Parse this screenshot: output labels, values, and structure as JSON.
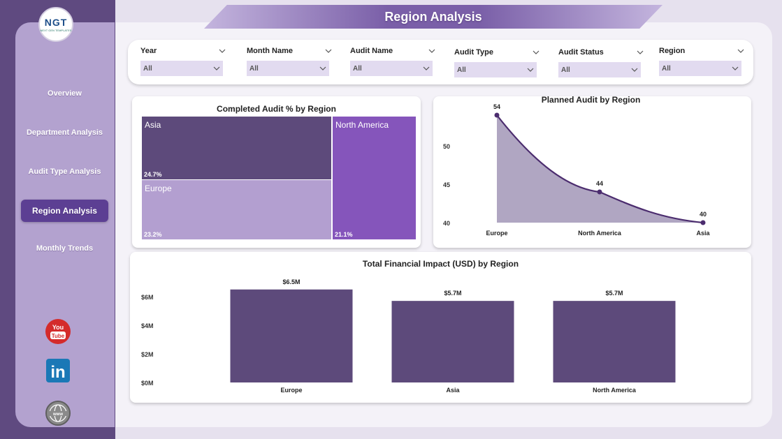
{
  "app": {
    "logo_text": "NGT",
    "logo_subtext": "NEXT GEN TEMPLATES",
    "page_title": "Region Analysis"
  },
  "sidebar": {
    "items": [
      {
        "label": "Overview",
        "active": false
      },
      {
        "label": "Department Analysis",
        "active": false
      },
      {
        "label": "Audit Type Analysis",
        "active": false
      },
      {
        "label": "Region Analysis",
        "active": true
      },
      {
        "label": "Monthly Trends",
        "active": false
      }
    ],
    "social": [
      {
        "icon": "youtube-icon",
        "text": "You Tube"
      },
      {
        "icon": "linkedin-icon",
        "text": "in"
      },
      {
        "icon": "globe-icon",
        "text": "www"
      }
    ]
  },
  "filters": [
    {
      "label": "Year",
      "value": "All"
    },
    {
      "label": "Month Name",
      "value": "All"
    },
    {
      "label": "Audit Name",
      "value": "All"
    },
    {
      "label": "Audit Type",
      "value": "All"
    },
    {
      "label": "Audit Status",
      "value": "All"
    },
    {
      "label": "Region",
      "value": "All"
    }
  ],
  "colors": {
    "accent": "#5c3f93",
    "dark_purple": "#5d4a7b",
    "medium_purple": "#8555bb",
    "light_purple": "#b39fd0",
    "line": "#4b2c6e",
    "area_fill": "#b0a6c2"
  },
  "chart_data": [
    {
      "type": "treemap",
      "title": "Completed Audit % by Region",
      "categories": [
        "Asia",
        "Europe",
        "North America"
      ],
      "values": [
        24.7,
        23.2,
        21.1
      ],
      "labels": [
        "24.7%",
        "23.2%",
        "21.1%"
      ]
    },
    {
      "type": "area",
      "title": "Planned Audit by Region",
      "categories": [
        "Europe",
        "North America",
        "Asia"
      ],
      "values": [
        54,
        44,
        40
      ],
      "yticks": [
        "50",
        "45",
        "40"
      ],
      "ylim": [
        40,
        54
      ]
    },
    {
      "type": "bar",
      "title": "Total Financial Impact (USD) by Region",
      "categories": [
        "Europe",
        "Asia",
        "North America"
      ],
      "values": [
        6.5,
        5.7,
        5.7
      ],
      "labels": [
        "$6.5M",
        "$5.7M",
        "$5.7M"
      ],
      "yticks": [
        "$6M",
        "$4M",
        "$2M",
        "$0M"
      ],
      "ylim": [
        0,
        7
      ]
    }
  ]
}
